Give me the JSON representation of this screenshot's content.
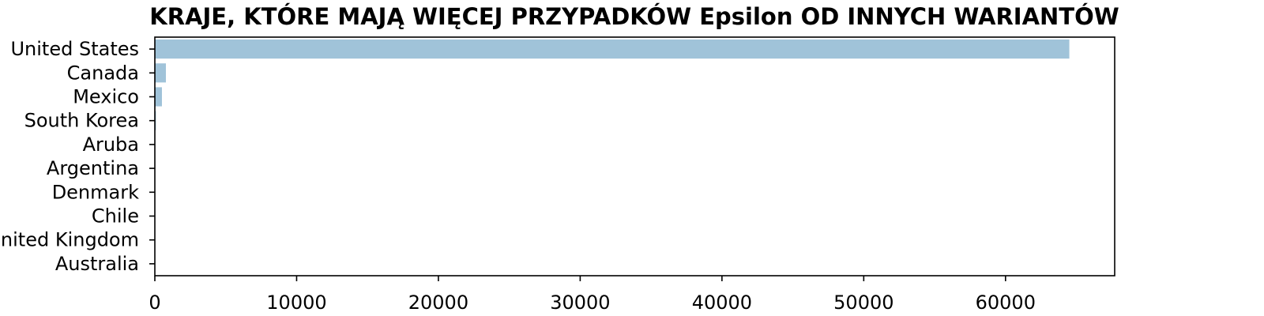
{
  "chart_data": {
    "type": "bar",
    "orientation": "horizontal",
    "title": "KRAJE, KTÓRE MAJĄ WIĘCEJ PRZYPADKÓW Epsilon OD INNYCH WARIANTÓW",
    "xlabel": "",
    "ylabel": "",
    "categories": [
      "United States",
      "Canada",
      "Mexico",
      "South Korea",
      "Aruba",
      "Argentina",
      "Denmark",
      "Chile",
      "United Kingdom",
      "Australia"
    ],
    "values": [
      64500,
      780,
      500,
      80,
      15,
      12,
      10,
      8,
      6,
      5
    ],
    "xlim": [
      0,
      67700
    ],
    "xticks": [
      0,
      10000,
      20000,
      30000,
      40000,
      50000,
      60000
    ],
    "xtick_labels": [
      "0",
      "10000",
      "20000",
      "30000",
      "40000",
      "50000",
      "60000"
    ],
    "grid": false,
    "colors": {
      "bar": "#a0c3d9",
      "axis": "#000000",
      "background": "#ffffff"
    }
  }
}
